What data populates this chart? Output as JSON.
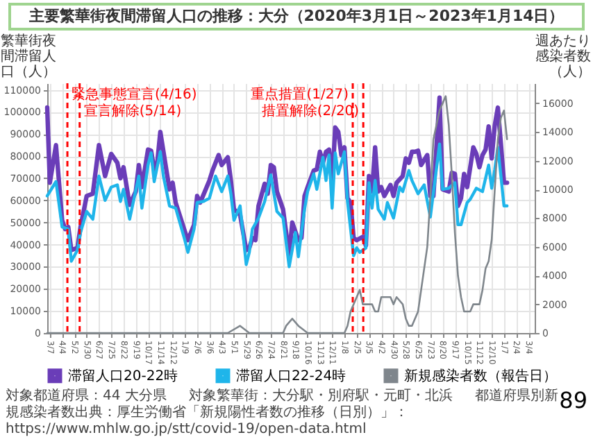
{
  "chart_data": {
    "type": "line",
    "title": "主要繁華街夜間滞留人口の推移：大分（2020年3月1日～2023年1月14日）",
    "ylabel": "繁華街夜間滞留人口（人）",
    "y2label": "週あたり感染者数（人）",
    "xlim": [
      "2020-03-01",
      "2023-03-18"
    ],
    "xticks": [
      {
        "value": "2020-03-07",
        "label": "3/7"
      },
      {
        "value": "2020-04-04",
        "label": "4/4"
      },
      {
        "value": "2020-05-02",
        "label": "5/2"
      },
      {
        "value": "2020-05-30",
        "label": "5/30"
      },
      {
        "value": "2020-06-27",
        "label": "6/27"
      },
      {
        "value": "2020-07-25",
        "label": "7/25"
      },
      {
        "value": "2020-08-22",
        "label": "8/22"
      },
      {
        "value": "2020-09-19",
        "label": "9/19"
      },
      {
        "value": "2020-10-17",
        "label": "10/17"
      },
      {
        "value": "2020-11-14",
        "label": "11/14"
      },
      {
        "value": "2020-12-12",
        "label": "12/12"
      },
      {
        "value": "2021-01-09",
        "label": "1/9"
      },
      {
        "value": "2021-02-06",
        "label": "2/6"
      },
      {
        "value": "2021-03-06",
        "label": "3/6"
      },
      {
        "value": "2021-04-03",
        "label": "4/3"
      },
      {
        "value": "2021-05-01",
        "label": "5/1"
      },
      {
        "value": "2021-05-29",
        "label": "5/29"
      },
      {
        "value": "2021-06-26",
        "label": "6/26"
      },
      {
        "value": "2021-07-24",
        "label": "7/24"
      },
      {
        "value": "2021-08-21",
        "label": "8/21"
      },
      {
        "value": "2021-09-18",
        "label": "9/18"
      },
      {
        "value": "2021-10-16",
        "label": "10/16"
      },
      {
        "value": "2021-11-13",
        "label": "11/13"
      },
      {
        "value": "2021-12-11",
        "label": "12/11"
      },
      {
        "value": "2022-01-08",
        "label": "1/8"
      },
      {
        "value": "2022-02-05",
        "label": "2/5"
      },
      {
        "value": "2022-03-05",
        "label": "3/5"
      },
      {
        "value": "2022-04-02",
        "label": "4/2"
      },
      {
        "value": "2022-04-30",
        "label": "4/30"
      },
      {
        "value": "2022-05-28",
        "label": "5/28"
      },
      {
        "value": "2022-06-25",
        "label": "6/25"
      },
      {
        "value": "2022-07-23",
        "label": "7/23"
      },
      {
        "value": "2022-08-20",
        "label": "8/20"
      },
      {
        "value": "2022-09-17",
        "label": "9/17"
      },
      {
        "value": "2022-10-15",
        "label": "10/15"
      },
      {
        "value": "2022-11-12",
        "label": "11/12"
      },
      {
        "value": "2022-12-10",
        "label": "12/10"
      },
      {
        "value": "2023-01-07",
        "label": "1/7"
      },
      {
        "value": "2023-02-04",
        "label": "2/4"
      },
      {
        "value": "2023-03-04",
        "label": "3/4"
      }
    ],
    "ylim": [
      0,
      113000
    ],
    "yticks": [
      0,
      10000,
      20000,
      30000,
      40000,
      50000,
      60000,
      70000,
      80000,
      90000,
      100000,
      110000
    ],
    "y2lim": [
      0,
      17400
    ],
    "y2ticks": [
      0,
      2000,
      4000,
      6000,
      8000,
      10000,
      12000,
      14000,
      16000
    ],
    "grid": true,
    "legend": "bottom",
    "line_style": "solid",
    "series": [
      {
        "name": "滞留人口20-22時",
        "color": "#6a3db8",
        "x": [
          "2020-03-01",
          "2020-03-07",
          "2020-03-21",
          "2020-04-04",
          "2020-04-11",
          "2020-04-18",
          "2020-04-25",
          "2020-05-09",
          "2020-05-16",
          "2020-05-30",
          "2020-06-13",
          "2020-06-27",
          "2020-07-11",
          "2020-07-25",
          "2020-08-08",
          "2020-08-15",
          "2020-08-22",
          "2020-09-05",
          "2020-09-19",
          "2020-09-26",
          "2020-10-03",
          "2020-10-17",
          "2020-10-24",
          "2020-10-31",
          "2020-11-07",
          "2020-11-14",
          "2020-11-28",
          "2020-12-05",
          "2020-12-12",
          "2020-12-19",
          "2021-01-09",
          "2021-01-16",
          "2021-01-30",
          "2021-02-06",
          "2021-02-13",
          "2021-03-06",
          "2021-03-13",
          "2021-03-27",
          "2021-04-03",
          "2021-04-17",
          "2021-04-24",
          "2021-05-01",
          "2021-05-15",
          "2021-05-29",
          "2021-06-05",
          "2021-06-12",
          "2021-06-19",
          "2021-06-26",
          "2021-07-10",
          "2021-07-17",
          "2021-07-24",
          "2021-07-31",
          "2021-08-07",
          "2021-08-21",
          "2021-09-04",
          "2021-09-11",
          "2021-09-25",
          "2021-10-02",
          "2021-10-09",
          "2021-10-16",
          "2021-10-30",
          "2021-11-06",
          "2021-11-13",
          "2021-11-20",
          "2021-11-27",
          "2021-12-04",
          "2021-12-11",
          "2021-12-18",
          "2021-12-25",
          "2022-01-01",
          "2022-01-08",
          "2022-01-15",
          "2022-01-22",
          "2022-01-29",
          "2022-02-05",
          "2022-02-19",
          "2022-02-26",
          "2022-03-05",
          "2022-03-12",
          "2022-03-19",
          "2022-03-26",
          "2022-04-02",
          "2022-04-09",
          "2022-04-23",
          "2022-04-30",
          "2022-05-07",
          "2022-05-21",
          "2022-05-28",
          "2022-06-04",
          "2022-06-11",
          "2022-06-18",
          "2022-06-25",
          "2022-07-02",
          "2022-07-16",
          "2022-07-23",
          "2022-07-30",
          "2022-08-13",
          "2022-08-20",
          "2022-09-03",
          "2022-09-10",
          "2022-09-17",
          "2022-09-24",
          "2022-10-01",
          "2022-10-08",
          "2022-10-15",
          "2022-10-29",
          "2022-11-05",
          "2022-11-12",
          "2022-11-19",
          "2022-11-26",
          "2022-12-03",
          "2022-12-10",
          "2022-12-17",
          "2022-12-24",
          "2022-12-31",
          "2023-01-07",
          "2023-01-14"
        ],
        "values": [
          102000,
          68000,
          85000,
          51000,
          47000,
          48000,
          37500,
          38500,
          48000,
          62000,
          63000,
          85000,
          71000,
          81000,
          77000,
          70000,
          75000,
          58000,
          64000,
          76000,
          66000,
          83000,
          82500,
          74000,
          77000,
          91000,
          73500,
          65000,
          68000,
          59000,
          46000,
          42000,
          49000,
          62000,
          59000,
          69000,
          73500,
          80500,
          76000,
          79500,
          69000,
          56000,
          53500,
          37500,
          38500,
          43000,
          42000,
          57500,
          67500,
          63000,
          76000,
          75000,
          64000,
          56000,
          35000,
          50000,
          42000,
          43000,
          62000,
          66000,
          73500,
          74000,
          82000,
          77000,
          82000,
          83000,
          67000,
          93000,
          91000,
          80500,
          84000,
          61000,
          59000,
          43000,
          42000,
          43500,
          39500,
          71000,
          64000,
          84000,
          64000,
          66000,
          62000,
          67000,
          62000,
          68000,
          71000,
          79000,
          77000,
          82000,
          82000,
          82500,
          76000,
          80500,
          62000,
          62000,
          106500,
          65000,
          64000,
          72500,
          72000,
          57500,
          61000,
          72000,
          66000,
          84000,
          81000,
          75000,
          80500,
          83000,
          93500,
          79000,
          94000,
          102000,
          85500,
          68000,
          68000
        ]
      },
      {
        "name": "滞留人口22-24時",
        "color": "#1fb5ea",
        "x": [
          "2020-03-01",
          "2020-03-21",
          "2020-04-04",
          "2020-04-18",
          "2020-04-25",
          "2020-05-09",
          "2020-05-16",
          "2020-05-30",
          "2020-06-13",
          "2020-06-27",
          "2020-07-11",
          "2020-07-25",
          "2020-08-08",
          "2020-08-15",
          "2020-08-22",
          "2020-09-05",
          "2020-09-26",
          "2020-10-03",
          "2020-10-17",
          "2020-10-24",
          "2020-10-31",
          "2020-11-14",
          "2020-11-21",
          "2020-12-05",
          "2020-12-19",
          "2021-01-09",
          "2021-01-16",
          "2021-01-30",
          "2021-02-06",
          "2021-02-20",
          "2021-03-06",
          "2021-03-20",
          "2021-04-03",
          "2021-04-17",
          "2021-04-24",
          "2021-05-01",
          "2021-05-15",
          "2021-05-29",
          "2021-06-05",
          "2021-06-12",
          "2021-06-26",
          "2021-07-10",
          "2021-07-24",
          "2021-08-07",
          "2021-08-21",
          "2021-09-04",
          "2021-09-18",
          "2021-09-25",
          "2021-10-09",
          "2021-10-16",
          "2021-10-30",
          "2021-11-06",
          "2021-11-20",
          "2021-11-27",
          "2021-12-04",
          "2021-12-11",
          "2021-12-18",
          "2021-12-25",
          "2022-01-08",
          "2022-01-15",
          "2022-01-29",
          "2022-02-05",
          "2022-02-12",
          "2022-02-26",
          "2022-03-05",
          "2022-03-12",
          "2022-03-19",
          "2022-03-26",
          "2022-04-09",
          "2022-04-16",
          "2022-04-30",
          "2022-05-14",
          "2022-05-21",
          "2022-06-04",
          "2022-06-11",
          "2022-06-25",
          "2022-07-09",
          "2022-07-23",
          "2022-08-13",
          "2022-08-20",
          "2022-09-03",
          "2022-09-17",
          "2022-09-24",
          "2022-10-01",
          "2022-10-15",
          "2022-10-22",
          "2022-11-05",
          "2022-11-19",
          "2022-12-03",
          "2022-12-10",
          "2022-12-17",
          "2022-12-24",
          "2022-12-31",
          "2023-01-07",
          "2023-01-14"
        ],
        "values": [
          62000,
          68500,
          48000,
          47000,
          32500,
          37500,
          45500,
          55000,
          51500,
          71000,
          60000,
          66000,
          67000,
          59500,
          65000,
          51500,
          71000,
          56500,
          76000,
          81500,
          68500,
          82000,
          71000,
          57500,
          56500,
          42000,
          36500,
          47000,
          59000,
          59500,
          61000,
          71000,
          64000,
          71000,
          63000,
          51000,
          57500,
          31000,
          36500,
          47000,
          52000,
          59500,
          71500,
          55000,
          52000,
          30000,
          45500,
          34500,
          56000,
          64000,
          72000,
          65000,
          79500,
          69000,
          80500,
          56500,
          81500,
          72000,
          82000,
          59500,
          35000,
          38500,
          36500,
          38500,
          68000,
          56500,
          69000,
          56000,
          51500,
          59000,
          52000,
          66000,
          64000,
          73500,
          69000,
          63000,
          67000,
          52500,
          85500,
          65000,
          65500,
          68000,
          49000,
          49000,
          59000,
          60500,
          65500,
          64000,
          76000,
          65500,
          74000,
          84000,
          71000,
          57500,
          57500
        ]
      },
      {
        "name": "新規感染者数（報告日）",
        "color": "#7f868c",
        "axis": "y2",
        "x": [
          "2020-03-01",
          "2020-11-14",
          "2020-11-28",
          "2020-12-12",
          "2021-01-09",
          "2021-02-06",
          "2021-03-06",
          "2021-04-17",
          "2021-05-15",
          "2021-06-05",
          "2021-07-31",
          "2021-08-21",
          "2021-08-28",
          "2021-09-11",
          "2021-09-25",
          "2021-10-16",
          "2021-11-13",
          "2022-01-08",
          "2022-01-15",
          "2022-01-22",
          "2022-02-05",
          "2022-02-12",
          "2022-02-19",
          "2022-03-05",
          "2022-03-12",
          "2022-03-19",
          "2022-03-26",
          "2022-04-02",
          "2022-04-16",
          "2022-04-23",
          "2022-04-30",
          "2022-05-07",
          "2022-05-21",
          "2022-05-28",
          "2022-06-04",
          "2022-06-11",
          "2022-06-25",
          "2022-07-02",
          "2022-07-09",
          "2022-07-16",
          "2022-07-23",
          "2022-07-30",
          "2022-08-06",
          "2022-08-13",
          "2022-08-27",
          "2022-09-03",
          "2022-09-10",
          "2022-09-17",
          "2022-09-24",
          "2022-10-01",
          "2022-10-08",
          "2022-10-22",
          "2022-10-29",
          "2022-11-12",
          "2022-11-19",
          "2022-11-26",
          "2022-12-03",
          "2022-12-10",
          "2022-12-17",
          "2022-12-24",
          "2022-12-31",
          "2023-01-07",
          "2023-01-14"
        ],
        "values": [
          0,
          0,
          0,
          0,
          0,
          0,
          0,
          0,
          500,
          0,
          0,
          0,
          500,
          1000,
          500,
          0,
          0,
          0,
          500,
          1500,
          2500,
          3000,
          2000,
          2000,
          2000,
          1500,
          1500,
          2500,
          2500,
          2500,
          2000,
          2500,
          2000,
          1000,
          500,
          500,
          1500,
          3000,
          4500,
          6000,
          9500,
          13500,
          14500,
          15500,
          16500,
          14500,
          11000,
          7000,
          4000,
          2500,
          1500,
          1500,
          2000,
          2000,
          3000,
          4500,
          5000,
          6500,
          10000,
          13500,
          15000,
          15500,
          13500
        ]
      }
    ],
    "ref_lines": [
      {
        "axis": "x",
        "value": "2020-04-16",
        "label": "緊急事態宣言(4/16)",
        "color": "#ff0000",
        "line_style": "dashed"
      },
      {
        "axis": "x",
        "value": "2020-05-14",
        "label": "宣言解除(5/14)",
        "color": "#ff0000",
        "line_style": "dashed"
      },
      {
        "axis": "x",
        "value": "2022-01-27",
        "label": "重点措置(1/27)",
        "color": "#ff0000",
        "line_style": "dashed"
      },
      {
        "axis": "x",
        "value": "2022-02-20",
        "label": "措置解除(2/20)",
        "color": "#ff0000",
        "line_style": "dashed"
      }
    ],
    "annotations": [
      "対象都道府県：44 大分県",
      "対象繁華街：大分駅・別府駅・元町・北浜",
      "都道府県別新規感染者数出典：厚生労働省「新規陽性者数の推移（日別）」：https://www.mhlw.go.jp/stt/covid-19/open-data.html",
      "89"
    ]
  }
}
